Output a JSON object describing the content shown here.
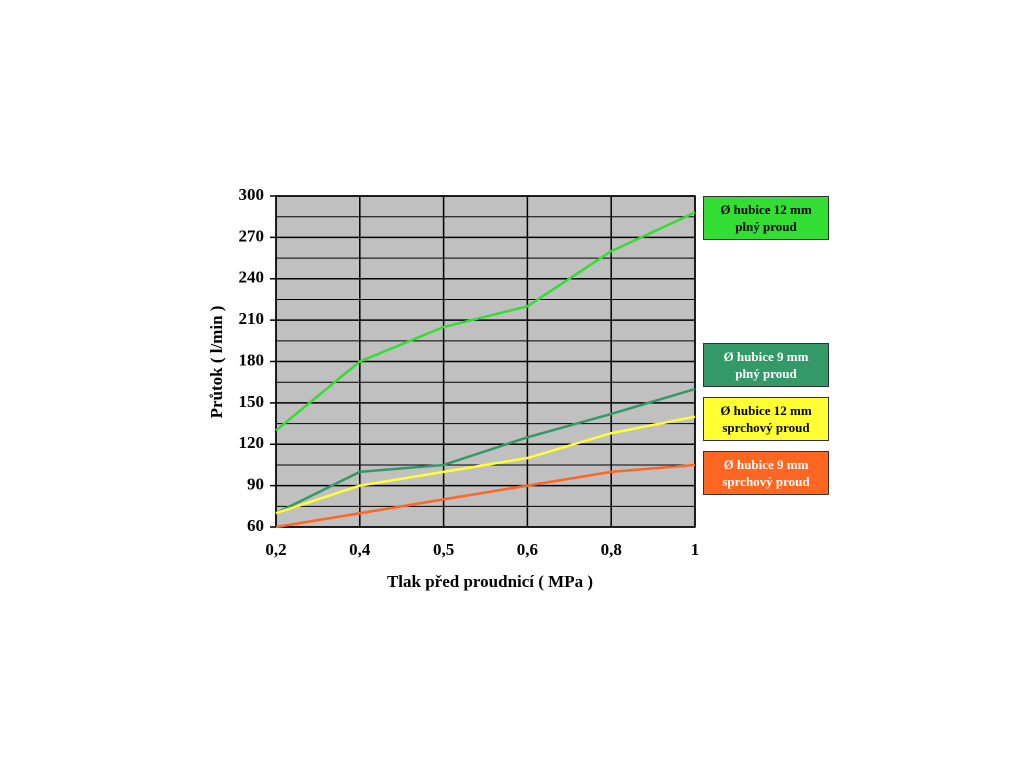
{
  "chart_data": {
    "type": "line",
    "x_label": "Tlak před proudnicí  ( MPa )",
    "y_label": "Průtok ( l/min )",
    "categories": [
      "0,2",
      "0,4",
      "0,5",
      "0,6",
      "0,8",
      "1"
    ],
    "ylim": [
      60,
      300
    ],
    "yticks": [
      60,
      90,
      120,
      150,
      180,
      210,
      240,
      270,
      300
    ],
    "yminorticks": [
      75,
      105,
      135,
      165,
      195,
      225,
      255,
      285
    ],
    "grid": true,
    "plot_background": "#c0c0c0",
    "series": [
      {
        "name": "Ø hubice 12  mm plný proud",
        "color": "#33dd33",
        "label_color": "#000000",
        "values": [
          130,
          180,
          205,
          220,
          260,
          288
        ]
      },
      {
        "name": "Ø hubice 9  mm plný proud",
        "color": "#339966",
        "label_color": "#ffffff",
        "values": [
          70,
          100,
          105,
          125,
          142,
          160
        ]
      },
      {
        "name": "Ø hubice 12  mm sprchový proud",
        "color": "#ffff33",
        "label_color": "#000000",
        "values": [
          70,
          90,
          100,
          110,
          128,
          140
        ]
      },
      {
        "name": "Ø hubice 9  mm sprchový proud",
        "color": "#ff6622",
        "label_color": "#ffffff",
        "values": [
          60,
          70,
          80,
          90,
          100,
          105
        ]
      }
    ]
  }
}
